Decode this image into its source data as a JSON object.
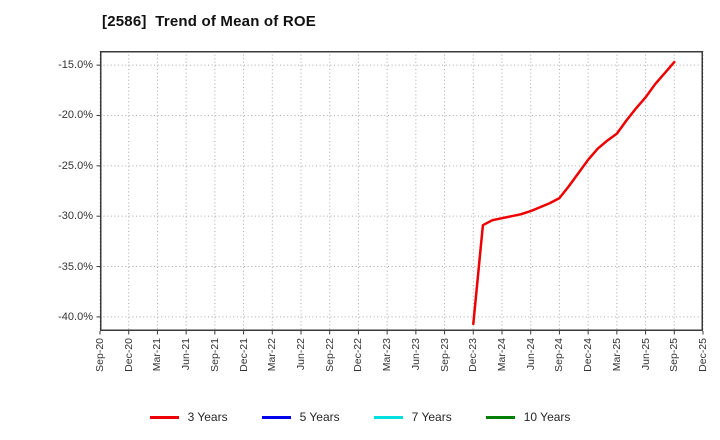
{
  "title": "[2586]  Trend of Mean of ROE",
  "chart_data": {
    "type": "line",
    "title": "[2586]  Trend of Mean of ROE",
    "xlabel": "",
    "ylabel": "",
    "grid": "dotted",
    "legend_position": "bottom",
    "x_tick_labels": [
      "Sep-20",
      "Dec-20",
      "Mar-21",
      "Jun-21",
      "Sep-21",
      "Dec-21",
      "Mar-22",
      "Jun-22",
      "Sep-22",
      "Dec-22",
      "Mar-23",
      "Jun-23",
      "Sep-23",
      "Dec-23",
      "Mar-24",
      "Jun-24",
      "Sep-24",
      "Dec-24",
      "Mar-25",
      "Jun-25",
      "Sep-25",
      "Dec-25"
    ],
    "y_tick_labels": [
      "-15.0%",
      "-20.0%",
      "-25.0%",
      "-30.0%",
      "-35.0%",
      "-40.0%"
    ],
    "y_ticks": [
      -15,
      -20,
      -25,
      -30,
      -35,
      -40
    ],
    "y_range": [
      -41.4,
      -13.6
    ],
    "x_range": [
      "Sep-20",
      "Dec-25"
    ],
    "series": [
      {
        "name": "3 Years",
        "color": "#ee0000",
        "points": [
          [
            "Dec-23",
            -40.7
          ],
          [
            "Jan-24",
            -30.9
          ],
          [
            "Feb-24",
            -30.4
          ],
          [
            "Mar-24",
            -30.2
          ],
          [
            "Apr-24",
            -30.0
          ],
          [
            "May-24",
            -29.8
          ],
          [
            "Jun-24",
            -29.5
          ],
          [
            "Jul-24",
            -29.1
          ],
          [
            "Aug-24",
            -28.7
          ],
          [
            "Sep-24",
            -28.2
          ],
          [
            "Oct-24",
            -27.0
          ],
          [
            "Nov-24",
            -25.7
          ],
          [
            "Dec-24",
            -24.4
          ],
          [
            "Jan-25",
            -23.3
          ],
          [
            "Feb-25",
            -22.5
          ],
          [
            "Mar-25",
            -21.8
          ],
          [
            "Apr-25",
            -20.5
          ],
          [
            "May-25",
            -19.3
          ],
          [
            "Jun-25",
            -18.2
          ],
          [
            "Jul-25",
            -16.9
          ],
          [
            "Aug-25",
            -15.8
          ],
          [
            "Sep-25",
            -14.7
          ]
        ]
      },
      {
        "name": "5 Years",
        "color": "#0000ee",
        "points": []
      },
      {
        "name": "7 Years",
        "color": "#00e0e0",
        "points": []
      },
      {
        "name": "10 Years",
        "color": "#007f00",
        "points": []
      }
    ],
    "colors": {
      "axis": "#3a3a3a",
      "grid": "#a8a8a8",
      "tick_text": "#333333",
      "title_text": "#111111"
    }
  }
}
